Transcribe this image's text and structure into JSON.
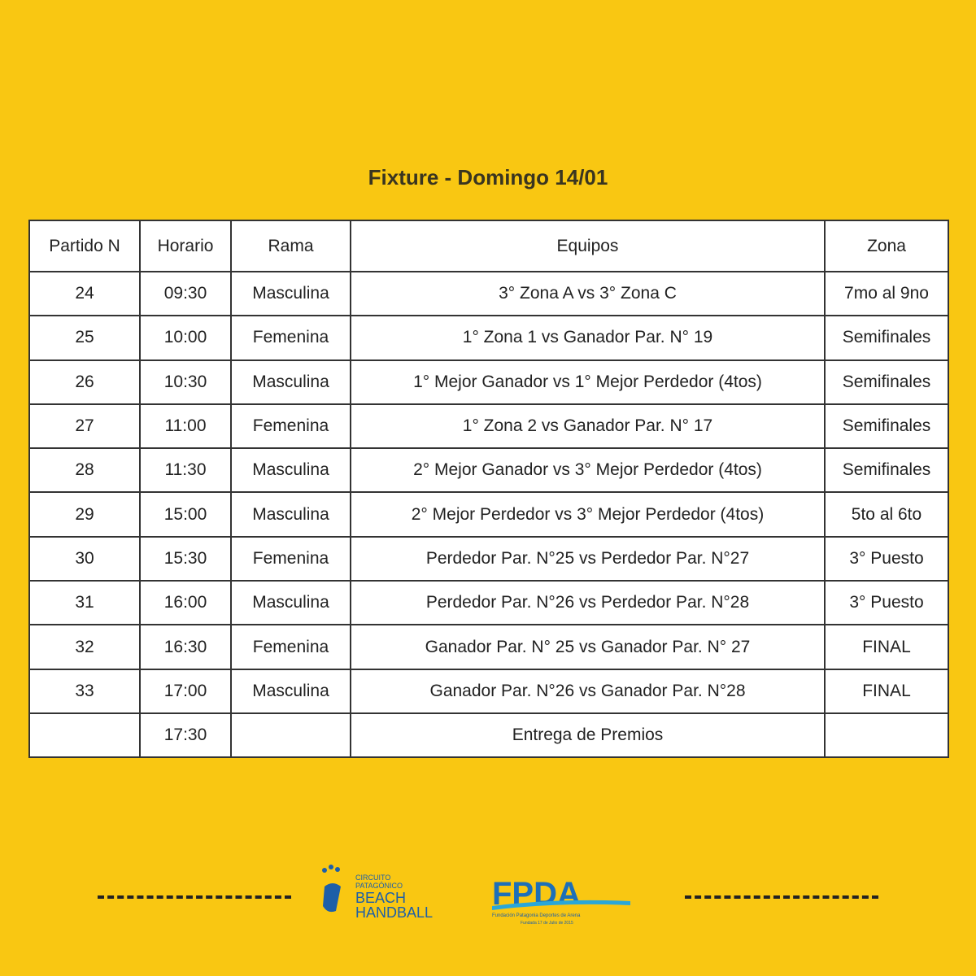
{
  "header": {
    "title": "Fixture - Domingo 14/01"
  },
  "table": {
    "header": [
      "Partido N",
      "Horario",
      "Rama",
      "Equipos",
      "Zona"
    ],
    "rows": [
      [
        "24",
        "09:30",
        "Masculina",
        "3° Zona A vs 3° Zona C",
        "7mo al 9no"
      ],
      [
        "25",
        "10:00",
        "Femenina",
        "1° Zona 1 vs Ganador Par. N° 19",
        "Semifinales"
      ],
      [
        "26",
        "10:30",
        "Masculina",
        "1° Mejor Ganador vs 1° Mejor Perdedor (4tos)",
        "Semifinales"
      ],
      [
        "27",
        "11:00",
        "Femenina",
        "1° Zona 2 vs Ganador Par. N° 17",
        "Semifinales"
      ],
      [
        "28",
        "11:30",
        "Masculina",
        "2° Mejor Ganador vs 3° Mejor Perdedor (4tos)",
        "Semifinales"
      ],
      [
        "29",
        "15:00",
        "Masculina",
        "2° Mejor Perdedor vs 3° Mejor Perdedor (4tos)",
        "5to al 6to"
      ],
      [
        "30",
        "15:30",
        "Femenina",
        "Perdedor Par. N°25 vs Perdedor Par. N°27",
        "3° Puesto"
      ],
      [
        "31",
        "16:00",
        "Masculina",
        "Perdedor Par. N°26 vs Perdedor Par. N°28",
        "3° Puesto"
      ],
      [
        "32",
        "16:30",
        "Femenina",
        "Ganador Par. N° 25 vs Ganador Par. N° 27",
        "FINAL"
      ],
      [
        "33",
        "17:00",
        "Masculina",
        "Ganador Par. N°26 vs Ganador Par. N°28",
        "FINAL"
      ],
      [
        null,
        "17:30",
        null,
        "Entrega de Premios",
        null
      ]
    ]
  },
  "footer": {
    "logo_left": {
      "line1": "CIRCUITO",
      "line2": "PATAGÓNICO",
      "line3": "BEACH",
      "line4": "HANDBALL"
    },
    "logo_right": {
      "name": "FPDA",
      "subtitle": "Fundación Patagonia Deportes de Arena",
      "founded": "Fundada 17 de Julio de 2015"
    }
  }
}
